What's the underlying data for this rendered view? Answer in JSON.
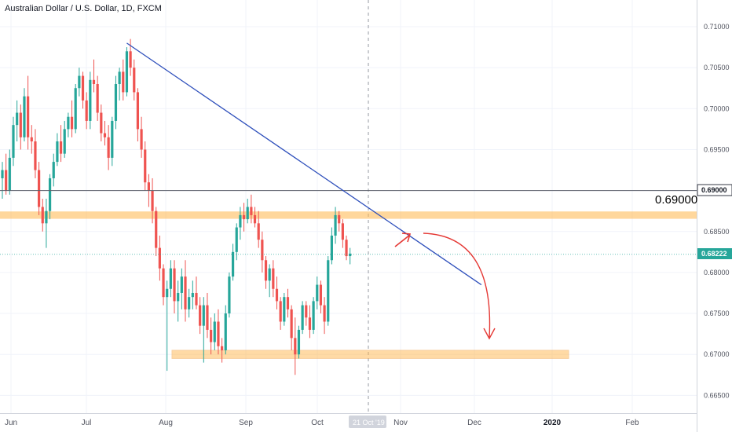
{
  "header": {
    "symbol_title": "Australian Dollar / U.S. Dollar, 1D, FXCM"
  },
  "chart_data": {
    "type": "candlestick",
    "title": "Australian Dollar / U.S. Dollar, 1D, FXCM",
    "ylim": [
      0.6625,
      0.7125
    ],
    "y_ticks": [
      "0.71000",
      "0.70500",
      "0.70000",
      "0.69500",
      "0.69000",
      "0.68500",
      "0.68000",
      "0.67500",
      "0.67000",
      "0.66500"
    ],
    "x_ticks": [
      {
        "label": "Jun",
        "bold": false
      },
      {
        "label": "Jul",
        "bold": false
      },
      {
        "label": "Aug",
        "bold": false
      },
      {
        "label": "Sep",
        "bold": false
      },
      {
        "label": "Oct",
        "bold": false
      },
      {
        "label": "Nov",
        "bold": false
      },
      {
        "label": "Dec",
        "bold": false
      },
      {
        "label": "2020",
        "bold": true
      },
      {
        "label": "Feb",
        "bold": false
      }
    ],
    "crosshair_date": "21 Oct '19",
    "last_price": "0.68222",
    "level_price": "0.69000",
    "level_annotation": "0.69000",
    "colors": {
      "up": "#26a69a",
      "down": "#ef5350",
      "trendline": "#2e4fbb",
      "zone": "#ffb74d",
      "arrow": "#e53935"
    },
    "candles": [
      [
        0.6915,
        0.6935,
        0.689,
        0.6925
      ],
      [
        0.6925,
        0.6945,
        0.6895,
        0.69
      ],
      [
        0.69,
        0.695,
        0.6895,
        0.694
      ],
      [
        0.694,
        0.699,
        0.693,
        0.698
      ],
      [
        0.698,
        0.701,
        0.696,
        0.6995
      ],
      [
        0.6995,
        0.7005,
        0.695,
        0.6965
      ],
      [
        0.6965,
        0.7025,
        0.696,
        0.7015
      ],
      [
        0.7015,
        0.704,
        0.695,
        0.6965
      ],
      [
        0.6965,
        0.698,
        0.6945,
        0.696
      ],
      [
        0.696,
        0.6975,
        0.6915,
        0.6925
      ],
      [
        0.6925,
        0.6935,
        0.687,
        0.688
      ],
      [
        0.688,
        0.689,
        0.685,
        0.686
      ],
      [
        0.686,
        0.689,
        0.683,
        0.6875
      ],
      [
        0.6875,
        0.692,
        0.6865,
        0.6915
      ],
      [
        0.6915,
        0.6945,
        0.6905,
        0.6935
      ],
      [
        0.6935,
        0.697,
        0.693,
        0.696
      ],
      [
        0.696,
        0.698,
        0.6935,
        0.6945
      ],
      [
        0.6945,
        0.6985,
        0.694,
        0.6975
      ],
      [
        0.6975,
        0.6995,
        0.6965,
        0.699
      ],
      [
        0.699,
        0.701,
        0.6965,
        0.6975
      ],
      [
        0.6975,
        0.703,
        0.697,
        0.7025
      ],
      [
        0.7025,
        0.705,
        0.7015,
        0.704
      ],
      [
        0.704,
        0.7045,
        0.7,
        0.701
      ],
      [
        0.701,
        0.702,
        0.6975,
        0.6985
      ],
      [
        0.6985,
        0.7045,
        0.6975,
        0.7035
      ],
      [
        0.7035,
        0.706,
        0.702,
        0.703
      ],
      [
        0.703,
        0.704,
        0.6985,
        0.6995
      ],
      [
        0.6995,
        0.7005,
        0.696,
        0.697
      ],
      [
        0.697,
        0.6985,
        0.6955,
        0.6965
      ],
      [
        0.6965,
        0.698,
        0.6925,
        0.694
      ],
      [
        0.694,
        0.699,
        0.693,
        0.6985
      ],
      [
        0.6985,
        0.704,
        0.6975,
        0.703
      ],
      [
        0.703,
        0.705,
        0.701,
        0.7045
      ],
      [
        0.7045,
        0.706,
        0.701,
        0.702
      ],
      [
        0.702,
        0.7075,
        0.7015,
        0.707
      ],
      [
        0.707,
        0.7085,
        0.704,
        0.705
      ],
      [
        0.705,
        0.706,
        0.701,
        0.702
      ],
      [
        0.702,
        0.7025,
        0.696,
        0.6975
      ],
      [
        0.6975,
        0.699,
        0.694,
        0.695
      ],
      [
        0.695,
        0.696,
        0.69,
        0.691
      ],
      [
        0.691,
        0.692,
        0.688,
        0.69
      ],
      [
        0.69,
        0.6915,
        0.686,
        0.6875
      ],
      [
        0.6875,
        0.688,
        0.682,
        0.683
      ],
      [
        0.683,
        0.6845,
        0.679,
        0.6805
      ],
      [
        0.6805,
        0.681,
        0.676,
        0.677
      ],
      [
        0.677,
        0.679,
        0.668,
        0.678
      ],
      [
        0.678,
        0.6815,
        0.677,
        0.6805
      ],
      [
        0.6805,
        0.6815,
        0.675,
        0.6765
      ],
      [
        0.6765,
        0.679,
        0.674,
        0.6775
      ],
      [
        0.6775,
        0.6805,
        0.6755,
        0.6795
      ],
      [
        0.6795,
        0.6815,
        0.674,
        0.6755
      ],
      [
        0.6755,
        0.678,
        0.6745,
        0.677
      ],
      [
        0.677,
        0.679,
        0.6755,
        0.6775
      ],
      [
        0.6775,
        0.6795,
        0.6755,
        0.676
      ],
      [
        0.676,
        0.677,
        0.6725,
        0.6735
      ],
      [
        0.6735,
        0.677,
        0.669,
        0.676
      ],
      [
        0.676,
        0.6775,
        0.672,
        0.673
      ],
      [
        0.673,
        0.6745,
        0.67,
        0.6715
      ],
      [
        0.6715,
        0.675,
        0.6705,
        0.674
      ],
      [
        0.674,
        0.6755,
        0.67,
        0.671
      ],
      [
        0.671,
        0.672,
        0.669,
        0.6705
      ],
      [
        0.6705,
        0.676,
        0.67,
        0.675
      ],
      [
        0.675,
        0.68,
        0.6745,
        0.6795
      ],
      [
        0.6795,
        0.6835,
        0.679,
        0.6825
      ],
      [
        0.6825,
        0.686,
        0.6815,
        0.6855
      ],
      [
        0.6855,
        0.688,
        0.684,
        0.687
      ],
      [
        0.687,
        0.6885,
        0.685,
        0.6865
      ],
      [
        0.6865,
        0.689,
        0.686,
        0.688
      ],
      [
        0.688,
        0.6895,
        0.686,
        0.687
      ],
      [
        0.687,
        0.688,
        0.6855,
        0.686
      ],
      [
        0.686,
        0.6875,
        0.683,
        0.684
      ],
      [
        0.684,
        0.685,
        0.68,
        0.6815
      ],
      [
        0.6815,
        0.682,
        0.678,
        0.679
      ],
      [
        0.679,
        0.681,
        0.677,
        0.6805
      ],
      [
        0.6805,
        0.6815,
        0.677,
        0.678
      ],
      [
        0.678,
        0.6795,
        0.6755,
        0.6765
      ],
      [
        0.6765,
        0.677,
        0.673,
        0.674
      ],
      [
        0.674,
        0.6775,
        0.6735,
        0.677
      ],
      [
        0.677,
        0.678,
        0.6745,
        0.6755
      ],
      [
        0.6755,
        0.676,
        0.6705,
        0.672
      ],
      [
        0.672,
        0.6745,
        0.6675,
        0.67
      ],
      [
        0.67,
        0.6735,
        0.6695,
        0.673
      ],
      [
        0.673,
        0.6765,
        0.6725,
        0.676
      ],
      [
        0.676,
        0.6765,
        0.6735,
        0.6745
      ],
      [
        0.6745,
        0.676,
        0.672,
        0.673
      ],
      [
        0.673,
        0.677,
        0.6725,
        0.6765
      ],
      [
        0.6765,
        0.6795,
        0.6755,
        0.6785
      ],
      [
        0.6785,
        0.679,
        0.675,
        0.676
      ],
      [
        0.676,
        0.677,
        0.6725,
        0.674
      ],
      [
        0.674,
        0.682,
        0.6735,
        0.6815
      ],
      [
        0.6815,
        0.6855,
        0.681,
        0.6845
      ],
      [
        0.6845,
        0.688,
        0.6835,
        0.687
      ],
      [
        0.687,
        0.6875,
        0.685,
        0.686
      ],
      [
        0.686,
        0.6865,
        0.683,
        0.684
      ],
      [
        0.684,
        0.6845,
        0.6815,
        0.682
      ],
      [
        0.682,
        0.683,
        0.681,
        0.6823
      ]
    ],
    "trendline": {
      "from": {
        "index": 34,
        "price": 0.708
      },
      "to": {
        "index": 124,
        "price": 0.6785
      }
    },
    "resistance_zone": {
      "low": 0.6866,
      "high": 0.6874
    },
    "support_zone": {
      "low": 0.6695,
      "high": 0.6705
    },
    "horizontal_level": 0.69
  }
}
